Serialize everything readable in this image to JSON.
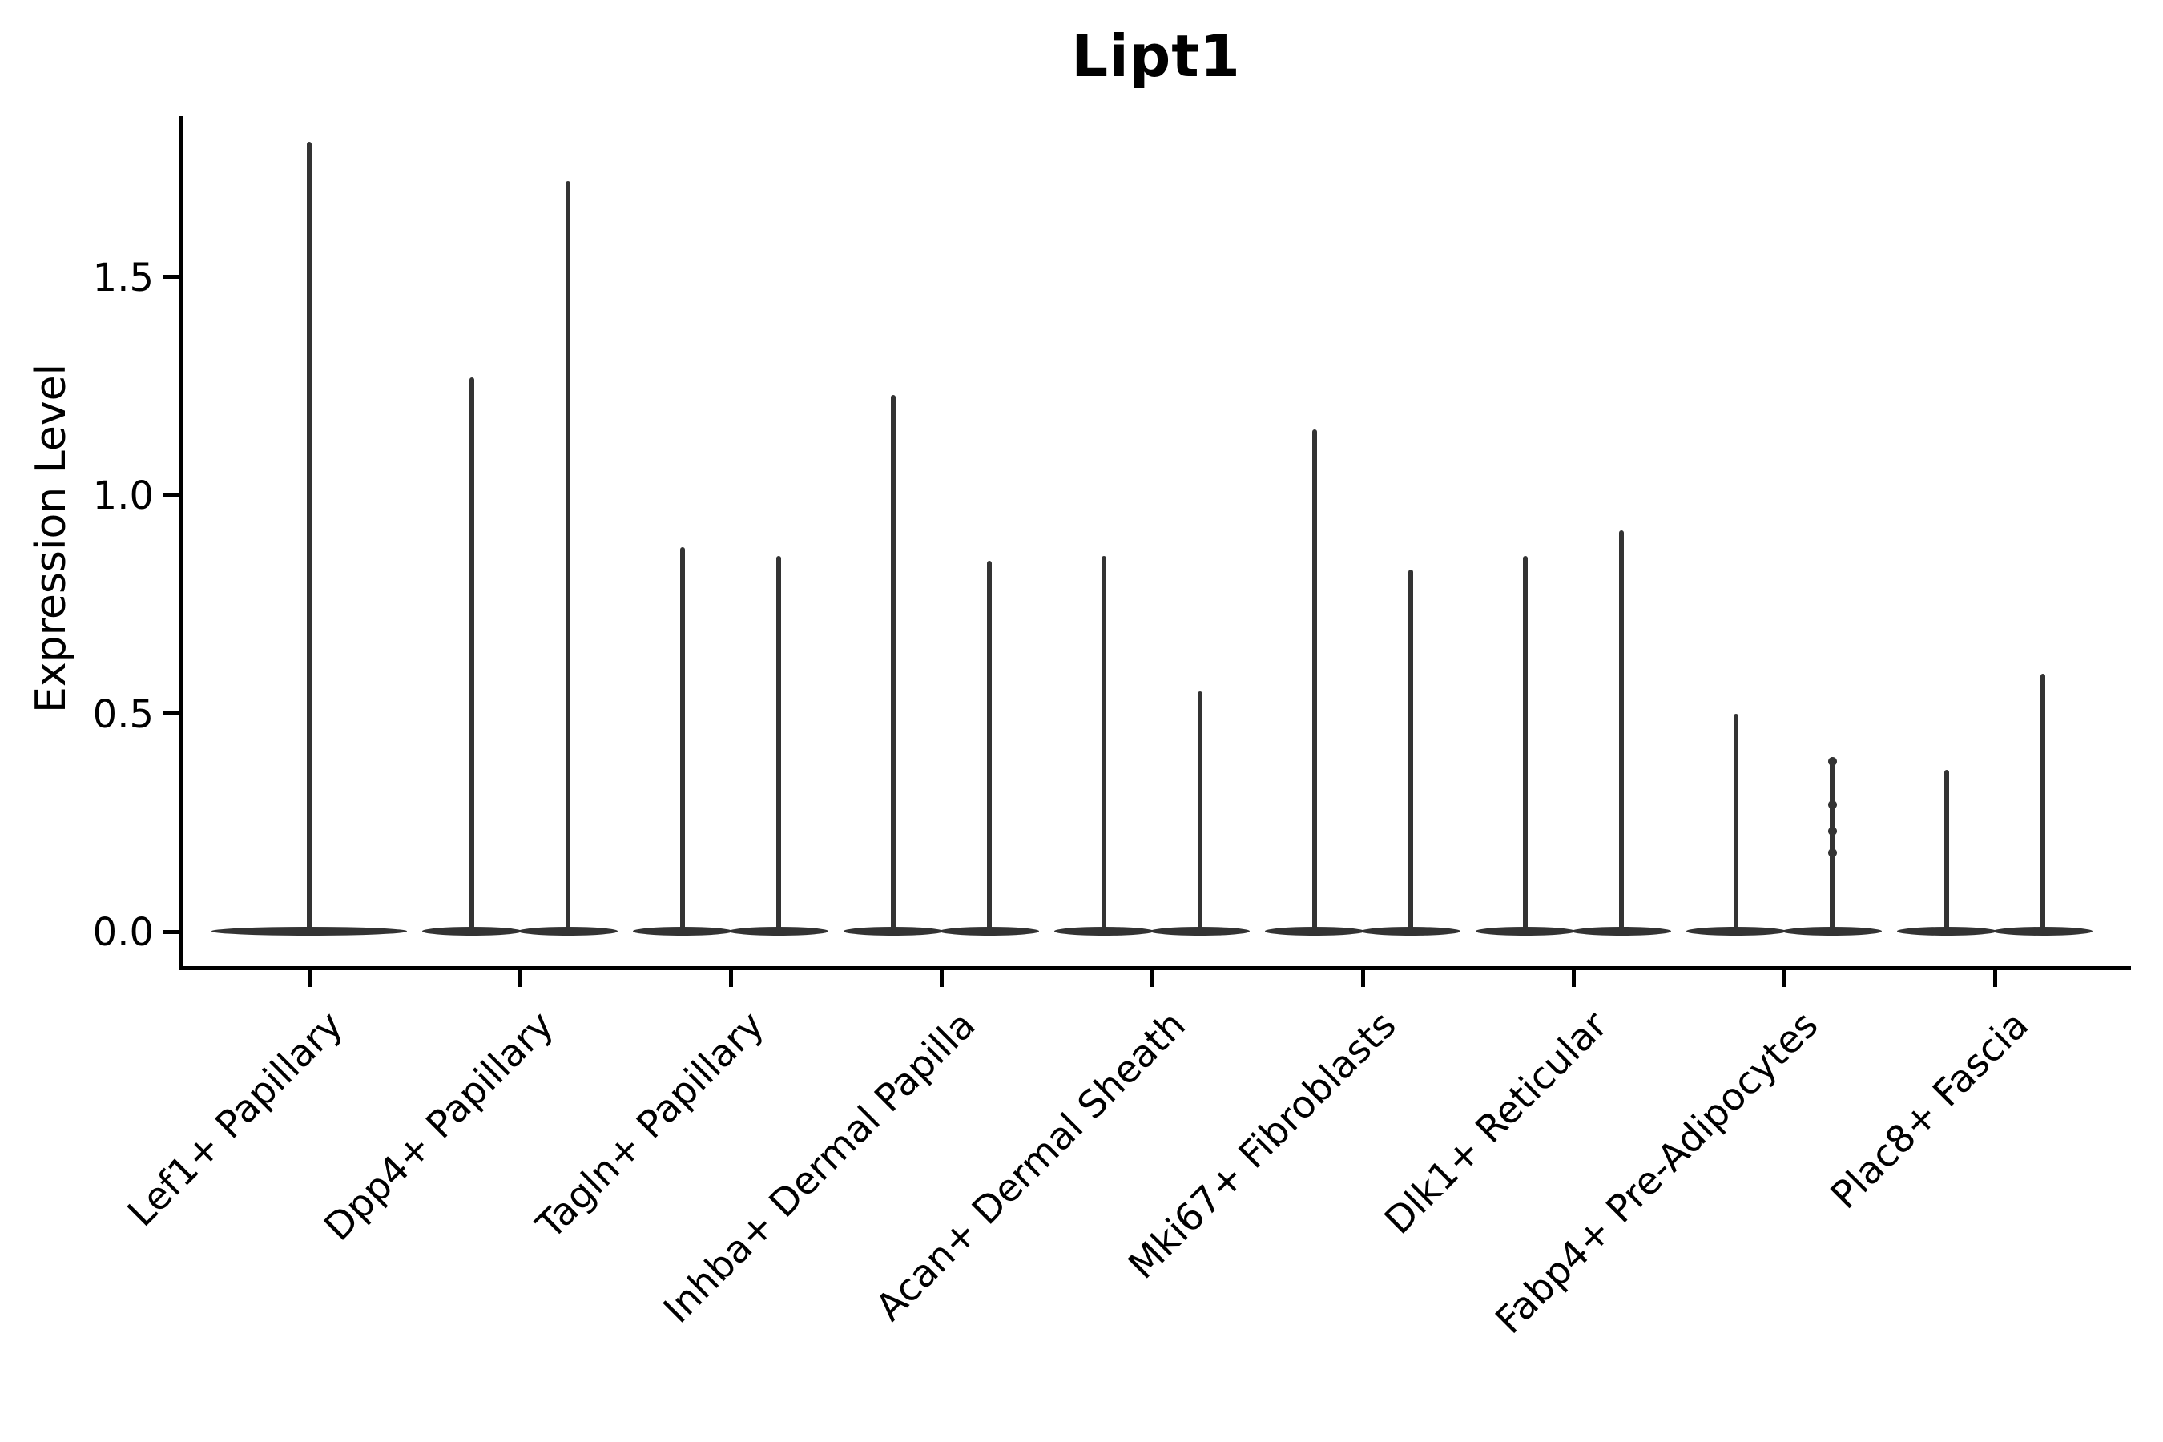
{
  "title": "Lipt1",
  "chart_data": {
    "type": "violin",
    "title": "Lipt1",
    "ylabel": "Expression Level",
    "xlabel": "",
    "ytick_labels": [
      "0.0",
      "0.5",
      "1.0",
      "1.5"
    ],
    "ytick_values": [
      0.0,
      0.5,
      1.0,
      1.5
    ],
    "ylim": [
      -0.08,
      1.87
    ],
    "grid": false,
    "legend_position": "none",
    "xlabel_rotation_deg": 45,
    "categories": [
      "Lef1+ Papillary",
      "Dpp4+ Papillary",
      "Tagln+ Papillary",
      "Inhba+ Dermal Papilla",
      "Acan+ Dermal Sheath",
      "Mki67+ Fibroblasts",
      "Dlk1+ Reticular",
      "Fabp4+ Pre-Adipocytes",
      "Plac8+ Fascia"
    ],
    "series": [
      {
        "category": "Lef1+ Papillary",
        "violins": [
          {
            "group": "single",
            "max_expression": 1.81
          }
        ]
      },
      {
        "category": "Dpp4+ Papillary",
        "violins": [
          {
            "group": "left",
            "max_expression": 1.27
          },
          {
            "group": "right",
            "max_expression": 1.72
          }
        ]
      },
      {
        "category": "Tagln+ Papillary",
        "violins": [
          {
            "group": "left",
            "max_expression": 0.88
          },
          {
            "group": "right",
            "max_expression": 0.86
          }
        ]
      },
      {
        "category": "Inhba+ Dermal Papilla",
        "violins": [
          {
            "group": "left",
            "max_expression": 1.23
          },
          {
            "group": "right",
            "max_expression": 0.85
          }
        ]
      },
      {
        "category": "Acan+ Dermal Sheath",
        "violins": [
          {
            "group": "left",
            "max_expression": 0.86
          },
          {
            "group": "right",
            "max_expression": 0.55
          }
        ]
      },
      {
        "category": "Mki67+ Fibroblasts",
        "violins": [
          {
            "group": "left",
            "max_expression": 1.15
          },
          {
            "group": "right",
            "max_expression": 0.83
          }
        ]
      },
      {
        "category": "Dlk1+ Reticular",
        "violins": [
          {
            "group": "left",
            "max_expression": 0.86
          },
          {
            "group": "right",
            "max_expression": 0.92
          }
        ]
      },
      {
        "category": "Fabp4+ Pre-Adipocytes",
        "violins": [
          {
            "group": "left",
            "max_expression": 0.5
          },
          {
            "group": "right",
            "max_expression": 0.4,
            "point_values": [
              0.39,
              0.29,
              0.23,
              0.18
            ]
          }
        ]
      },
      {
        "category": "Plac8+ Fascia",
        "violins": [
          {
            "group": "left",
            "max_expression": 0.37
          },
          {
            "group": "right",
            "max_expression": 0.59
          }
        ]
      }
    ],
    "description": "Violin plot of Lipt1 expression per fibroblast cluster; expression mass concentrated at 0 (flat violin bodies) with thin spikes up to the per-group maximum.",
    "colors": {
      "violin": "#333333",
      "axis": "#000000",
      "text": "#000000",
      "background": "#ffffff"
    }
  }
}
